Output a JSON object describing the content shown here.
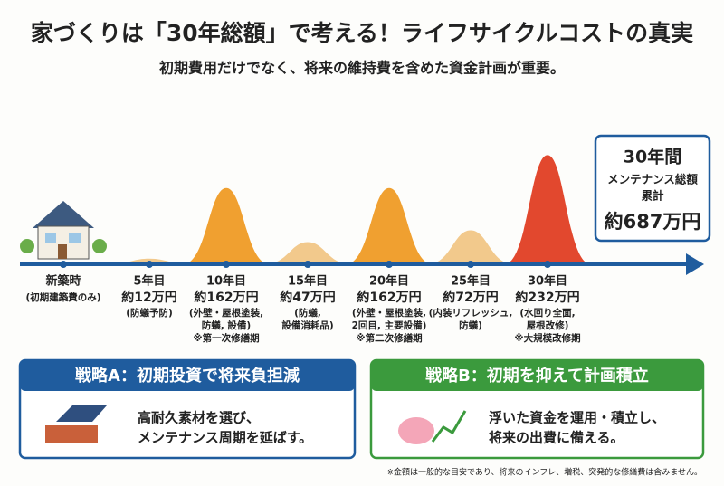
{
  "title": "家づくりは「30年総額」で考える！ライフサイクルコストの真実",
  "subtitle": "初期費用だけでなく、将来の維持費を含めた資金計画が重要。",
  "milestones": [
    {
      "year": "新築時",
      "note": [
        "(初期建築費のみ)"
      ]
    },
    {
      "year": "5年目",
      "cost": 12,
      "cost_label": "約12万円",
      "color": "#f2c98c",
      "note": [
        "(防蟻予防)"
      ]
    },
    {
      "year": "10年目",
      "cost": 162,
      "cost_label": "約162万円",
      "color": "#f0a030",
      "note": [
        "(外壁・屋根塗装,",
        "防蟻, 設備)",
        "※第一次修繕期"
      ]
    },
    {
      "year": "15年目",
      "cost": 47,
      "cost_label": "約47万円",
      "color": "#f2c98c",
      "note": [
        "(防蟻,",
        "設備消耗品)"
      ]
    },
    {
      "year": "20年目",
      "cost": 162,
      "cost_label": "約162万円",
      "color": "#f0a030",
      "note": [
        "(外壁・屋根塗装,",
        "2回目, 主要設備)",
        "※第二次修繕期"
      ]
    },
    {
      "year": "25年目",
      "cost": 72,
      "cost_label": "約72万円",
      "color": "#f2c98c",
      "note": [
        "(内装リフレッシュ,",
        "防蟻)"
      ]
    },
    {
      "year": "30年目",
      "cost": 232,
      "cost_label": "約232万円",
      "color": "#e2482e",
      "note": [
        "(水回り全面,",
        "屋根改修)",
        "※大規模改修期"
      ]
    }
  ],
  "total": {
    "heading": "30年間",
    "lines": [
      "メンテナンス総額",
      "累計"
    ],
    "amount": "約687万円"
  },
  "strategies": [
    {
      "title": "戦略A：初期投資で将来負担減",
      "lines": [
        "高耐久素材を選び、",
        "メンテナンス周期を延ばす。"
      ],
      "color": "#1f5c9e"
    },
    {
      "title": "戦略B：初期を抑えて計画積立",
      "lines": [
        "浮いた資金を運用・積立し、",
        "将来の出費に備える。"
      ],
      "color": "#3b9a3d"
    }
  ],
  "footnote": "※金額は一般的な目安であり、将来のインフレ、増税、突発的な修繕費は含みません。"
}
